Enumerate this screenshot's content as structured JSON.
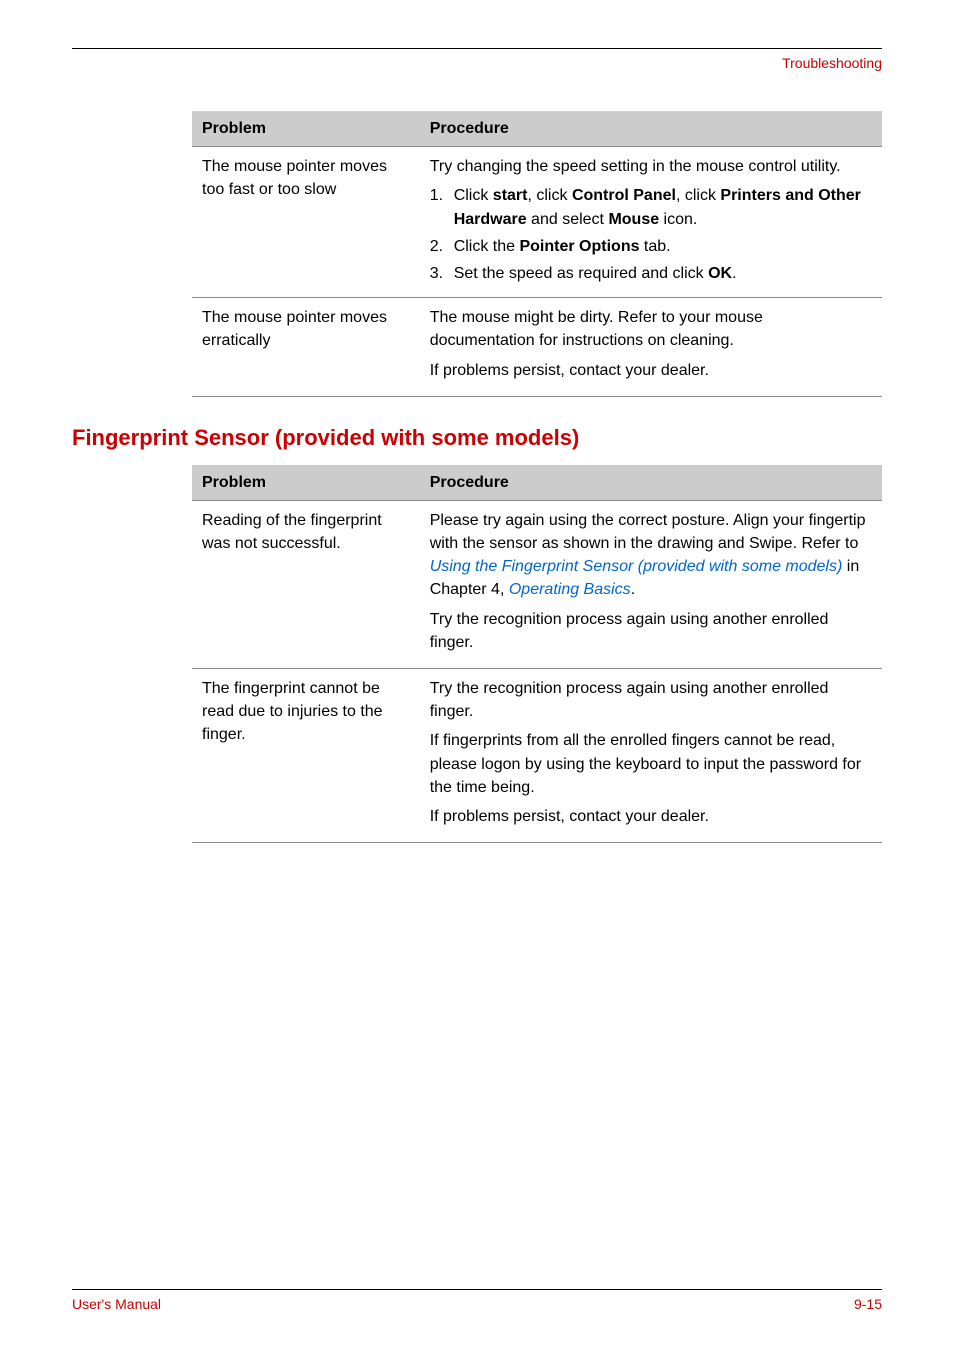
{
  "header": {
    "label": "Troubleshooting"
  },
  "table1": {
    "col_problem_header": "Problem",
    "col_procedure_header": "Procedure",
    "rows": [
      {
        "problem": "The mouse pointer moves too fast or too slow",
        "intro": "Try changing the speed setting in the mouse control utility.",
        "steps": [
          {
            "n": "1.",
            "pre": "Click ",
            "b1": "start",
            "mid1": ", click ",
            "b2": "Control Panel",
            "mid2": ", click ",
            "b3": "Printers and Other Hardware",
            "mid3": " and select ",
            "b4": "Mouse",
            "post": " icon."
          },
          {
            "n": "2.",
            "pre": "Click the ",
            "b1": "Pointer Options",
            "post": " tab."
          },
          {
            "n": "3.",
            "pre": "Set the speed as required and click ",
            "b1": "OK",
            "post": "."
          }
        ]
      },
      {
        "problem": "The mouse pointer moves erratically",
        "lines": [
          "The mouse might be dirty. Refer to your mouse documentation for instructions on cleaning.",
          "If problems persist, contact your dealer."
        ]
      }
    ]
  },
  "section_heading": "Fingerprint Sensor (provided with some models)",
  "table2": {
    "col_problem_header": "Problem",
    "col_procedure_header": "Procedure",
    "rows": [
      {
        "problem": "Reading of the fingerprint was not successful.",
        "para1_pre": "Please try again using the correct posture. Align your fingertip with the sensor as shown in the drawing and Swipe. Refer to ",
        "para1_link1": "Using the Fingerprint Sensor (provided with some models)",
        "para1_mid": " in Chapter 4, ",
        "para1_link2": "Operating Basics",
        "para1_post": ".",
        "para2": "Try the recognition process again using another enrolled finger."
      },
      {
        "problem": "The fingerprint cannot be read due to injuries to the finger.",
        "lines": [
          "Try the recognition process again using another enrolled finger.",
          "If fingerprints from all the enrolled fingers cannot be read, please logon by using the keyboard to input the password for the time being.",
          "If problems persist, contact your dealer."
        ]
      }
    ]
  },
  "footer": {
    "left": "User's Manual",
    "right": "9-15"
  },
  "colors": {
    "accent_red": "#cc0000",
    "link_blue": "#0066cc",
    "header_grey": "#cccccc",
    "rule": "#000000",
    "row_border": "#888888"
  }
}
